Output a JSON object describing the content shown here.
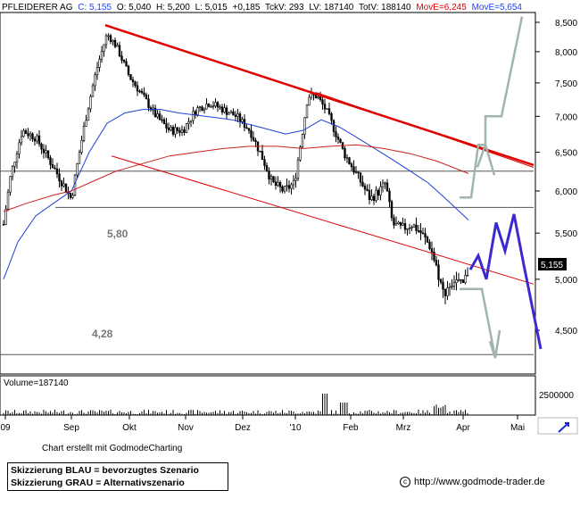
{
  "header": {
    "symbol": "PFLEIDERER AG",
    "c": "C: 5,155",
    "o": "O: 5,040",
    "h": "H: 5,200",
    "l": "L: 5,015",
    "chg": "+0,185",
    "tickv": "TckV: 293",
    "lv": "LV: 187140",
    "totv": "TotV: 188140",
    "move1": "MovE=6,245",
    "move2": "MovE=5,654"
  },
  "colors": {
    "header_red": "#e00000",
    "header_blue": "#2040ff",
    "trend_red": "#e00000",
    "ma_blue": "#1f3fd6",
    "ma_red": "#cc2020",
    "scenario_blue": "#3a2ad0",
    "scenario_gray": "#9fb5ae"
  },
  "levels": {
    "level_580": "5,80",
    "level_428": "4,28"
  },
  "price_tag": "5,155",
  "volume": {
    "label": "Volume=187140",
    "axis_label": "2500000"
  },
  "credit": "Chart erstellt mit GodmodeCharting",
  "legend": {
    "blue": "Skizzierung BLAU = bevorzugtes Szenario",
    "gray": "Skizzierung GRAU = Alternativszenario"
  },
  "url": "http://www.godmode-trader.de",
  "chart_data": {
    "type": "candlestick",
    "y_ticks": [
      "4,500",
      "5,000",
      "5,500",
      "6,000",
      "6,500",
      "7,000",
      "7,500",
      "8,000",
      "8,500"
    ],
    "x_ticks": [
      "09",
      "Sep",
      "Okt",
      "Nov",
      "Dez",
      "'10",
      "Feb",
      "Mrz",
      "Apr",
      "Mai"
    ],
    "horizontal_levels": [
      4.28,
      5.8,
      6.25
    ],
    "last_price": 5.155
  }
}
